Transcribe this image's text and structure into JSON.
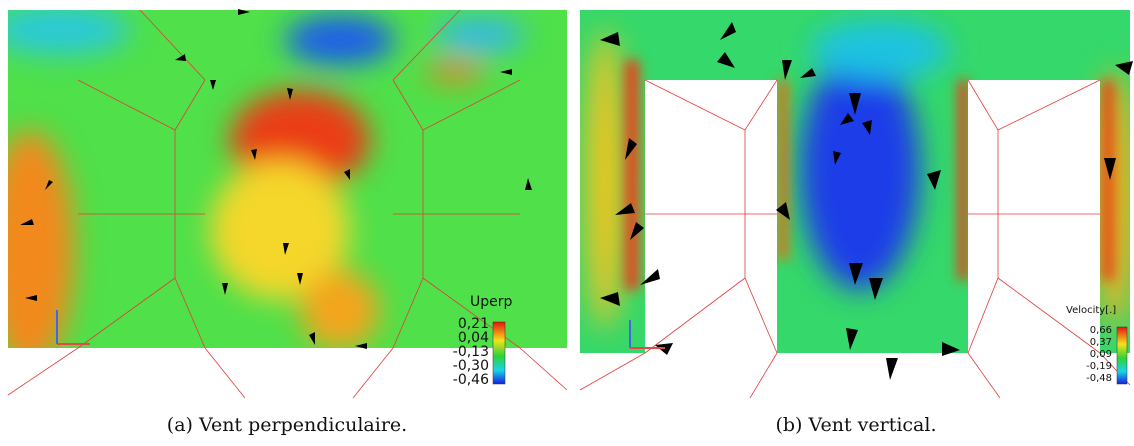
{
  "panels": [
    {
      "legend_title": "Uperp",
      "legend_ticks": [
        "0,21",
        "0,04",
        "-0,13",
        "-0,30",
        "-0,46"
      ],
      "caption": "(a) Vent perpendiculaire."
    },
    {
      "legend_title": "Velocity[.]",
      "legend_ticks": [
        "0,66",
        "0,37",
        "0,09",
        "-0,19",
        "-0,48"
      ],
      "caption": "(b) Vent vertical."
    }
  ]
}
